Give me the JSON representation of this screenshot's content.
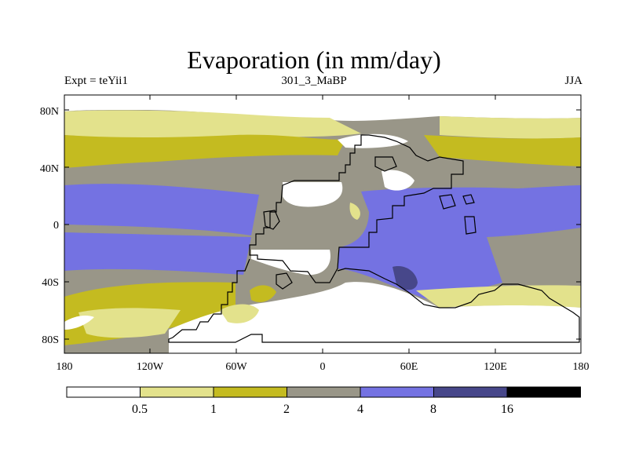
{
  "title": "Evaporation (in mm/day)",
  "subtitle_left": "Expt = teYii1",
  "subtitle_center": "301_3_MaBP",
  "subtitle_right": "JJA",
  "axes": {
    "lon_ticks": [
      "180",
      "120W",
      "60W",
      "0",
      "60E",
      "120E",
      "180"
    ],
    "lat_ticks": [
      "80N",
      "40N",
      "0",
      "40S",
      "80S"
    ]
  },
  "colorbar": {
    "colors": [
      "#ffffff",
      "#e3e28c",
      "#c4bb20",
      "#999688",
      "#7472e2",
      "#47478a",
      "#000000"
    ],
    "labels": [
      "0.5",
      "1",
      "2",
      "4",
      "8",
      "16"
    ]
  }
}
